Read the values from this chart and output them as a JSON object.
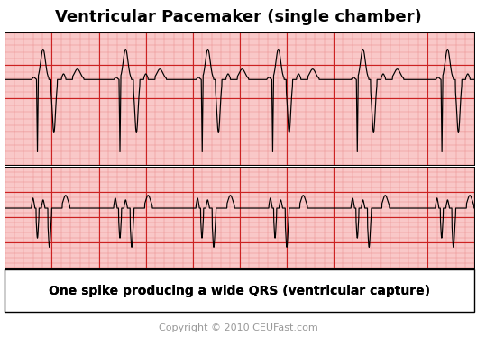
{
  "title": "Ventricular Pacemaker (single chamber)",
  "subtitle": "One spike producing a wide QRS (ventricular capture)",
  "copyright": "Copyright © 2010 CEUFast.com",
  "title_fontsize": 13,
  "subtitle_fontsize": 10,
  "copyright_fontsize": 8,
  "ecg_grid_bg": "#f9c8c8",
  "ecg_minor_grid_color": "#e88888",
  "ecg_major_grid_color": "#cc2222",
  "ecg_line_color": "#000000",
  "outer_bg": "#ffffff",
  "border_color": "#000000",
  "figsize": [
    5.29,
    3.74
  ],
  "dpi": 100
}
